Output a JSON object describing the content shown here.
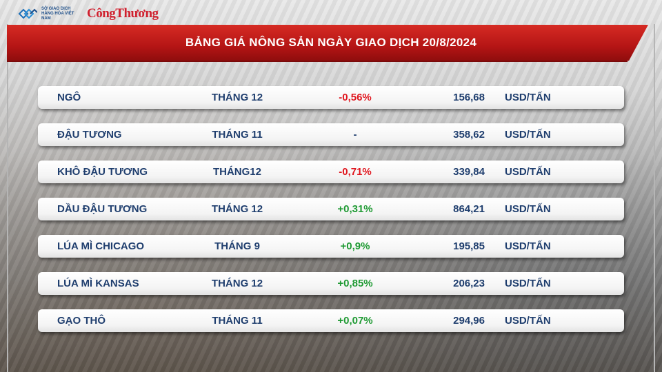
{
  "header": {
    "org_text": "SỞ GIAO DỊCH HÀNG HÓA VIỆT NAM",
    "brand": "CôngThương",
    "title": "BẢNG GIÁ NÔNG SẢN NGÀY GIAO DỊCH 20/8/2024"
  },
  "colors": {
    "banner_red": "#c41e1e",
    "label_blue": "#1f3e6e",
    "negative_red": "#e0161e",
    "positive_green": "#1f9a33"
  },
  "rows": [
    {
      "name": "NGÔ",
      "month": "THÁNG 12",
      "change": "-0,56%",
      "trend": "neg",
      "price": "156,68",
      "unit": "USD/TẤN"
    },
    {
      "name": "ĐẬU TƯƠNG",
      "month": "THÁNG 11",
      "change": "-",
      "trend": "flat",
      "price": "358,62",
      "unit": "USD/TẤN"
    },
    {
      "name": "KHÔ ĐẬU TƯƠNG",
      "month": "THÁNG12",
      "change": "-0,71%",
      "trend": "neg",
      "price": "339,84",
      "unit": "USD/TẤN"
    },
    {
      "name": "DẦU ĐẬU TƯƠNG",
      "month": "THÁNG 12",
      "change": "+0,31%",
      "trend": "pos",
      "price": "864,21",
      "unit": "USD/TẤN"
    },
    {
      "name": "LÚA MÌ CHICAGO",
      "month": "THÁNG 9",
      "change": "+0,9%",
      "trend": "pos",
      "price": "195,85",
      "unit": "USD/TẤN"
    },
    {
      "name": "LÚA MÌ KANSAS",
      "month": "THÁNG 12",
      "change": "+0,85%",
      "trend": "pos",
      "price": "206,23",
      "unit": "USD/TẤN"
    },
    {
      "name": "GẠO THÔ",
      "month": "THÁNG 11",
      "change": "+0,07%",
      "trend": "pos",
      "price": "294,96",
      "unit": "USD/TẤN"
    }
  ]
}
